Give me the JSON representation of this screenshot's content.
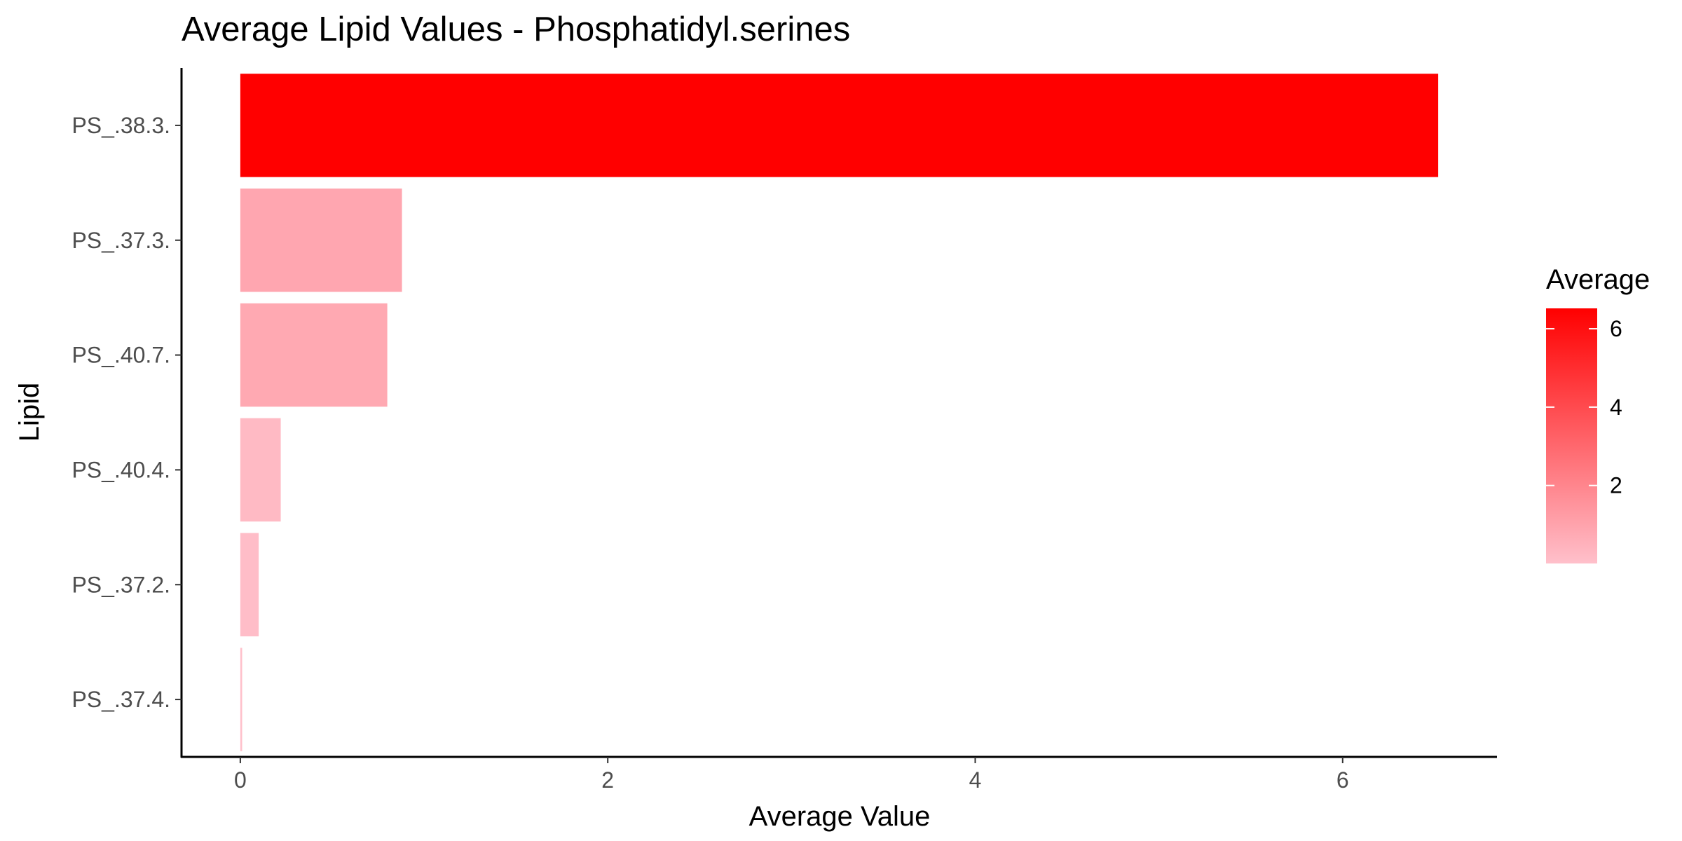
{
  "chart_data": {
    "type": "bar",
    "orientation": "horizontal",
    "title": "Average Lipid Values - Phosphatidyl.serines",
    "xlabel": "Average Value",
    "ylabel": "Lipid",
    "categories": [
      "PS_.38.3.",
      "PS_.37.3.",
      "PS_.40.7.",
      "PS_.40.4.",
      "PS_.37.2.",
      "PS_.37.4."
    ],
    "values": [
      6.52,
      0.88,
      0.8,
      0.22,
      0.1,
      0.01
    ],
    "xlim": [
      -0.32,
      6.84
    ],
    "xticks": [
      0,
      2,
      4,
      6
    ],
    "grid": false,
    "fill_scale": {
      "title": "Average",
      "low_color": "#ffc0cb",
      "high_color": "#ff0000",
      "limits": [
        0.01,
        6.52
      ],
      "breaks": [
        2,
        4,
        6
      ]
    },
    "legend_position": "right"
  }
}
